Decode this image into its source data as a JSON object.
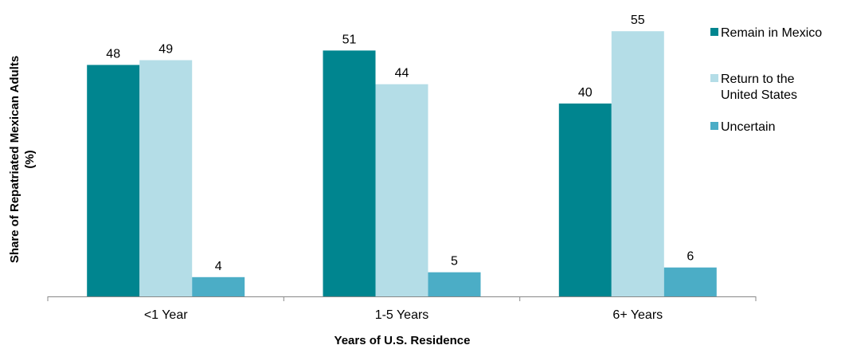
{
  "chart_data": {
    "type": "bar",
    "title": "",
    "xlabel": "Years of U.S. Residence",
    "ylabel": [
      "Share of Repatriated Mexican Adults",
      "(%)"
    ],
    "categories": [
      "<1 Year",
      "1-5 Years",
      "6+ Years"
    ],
    "ylim": [
      0,
      58
    ],
    "grid": false,
    "legend_position": "right",
    "series": [
      {
        "name": "Remain in Mexico",
        "legend_lines": [
          "Remain in Mexico"
        ],
        "color": "#00858F",
        "values": [
          48,
          51,
          40
        ]
      },
      {
        "name": "Return to the United States",
        "legend_lines": [
          "Return to the",
          "United States"
        ],
        "color": "#B4DDE7",
        "values": [
          49,
          44,
          55
        ]
      },
      {
        "name": "Uncertain",
        "legend_lines": [
          "Uncertain"
        ],
        "color": "#4BADC6",
        "values": [
          4,
          5,
          6
        ]
      }
    ]
  }
}
